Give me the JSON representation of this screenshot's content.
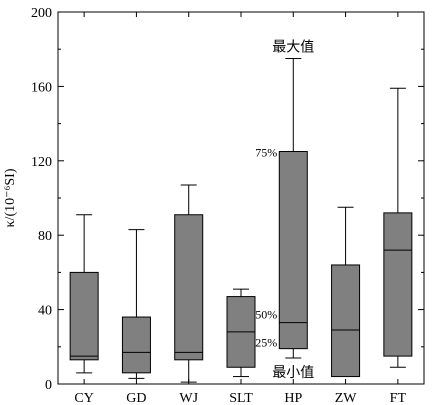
{
  "chart_data": {
    "type": "box",
    "ylabel": "κ/(10⁻⁶SI)",
    "ylim": [
      0,
      200
    ],
    "yticks": [
      0,
      40,
      80,
      120,
      160,
      200
    ],
    "categories": [
      "CY",
      "GD",
      "WJ",
      "SLT",
      "HP",
      "ZW",
      "FT"
    ],
    "boxes": [
      {
        "category": "CY",
        "min": 6,
        "q1": 13,
        "median": 15,
        "q3": 60,
        "max": 91
      },
      {
        "category": "GD",
        "min": 3,
        "q1": 6,
        "median": 17,
        "q3": 36,
        "max": 83
      },
      {
        "category": "WJ",
        "min": 1,
        "q1": 13,
        "median": 17,
        "q3": 91,
        "max": 107
      },
      {
        "category": "SLT",
        "min": 4,
        "q1": 9,
        "median": 28,
        "q3": 47,
        "max": 51
      },
      {
        "category": "HP",
        "min": 14,
        "q1": 19,
        "median": 33,
        "q3": 125,
        "max": 175
      },
      {
        "category": "ZW",
        "min": 4,
        "q1": 4,
        "median": 29,
        "q3": 64,
        "max": 95
      },
      {
        "category": "FT",
        "min": 9,
        "q1": 15,
        "median": 72,
        "q3": 92,
        "max": 159
      }
    ],
    "annotations": {
      "max_label": "最大值",
      "min_label": "最小值",
      "p75": "75%",
      "p50": "50%",
      "p25": "25%"
    },
    "grid": false,
    "box_fill": "#808080"
  }
}
